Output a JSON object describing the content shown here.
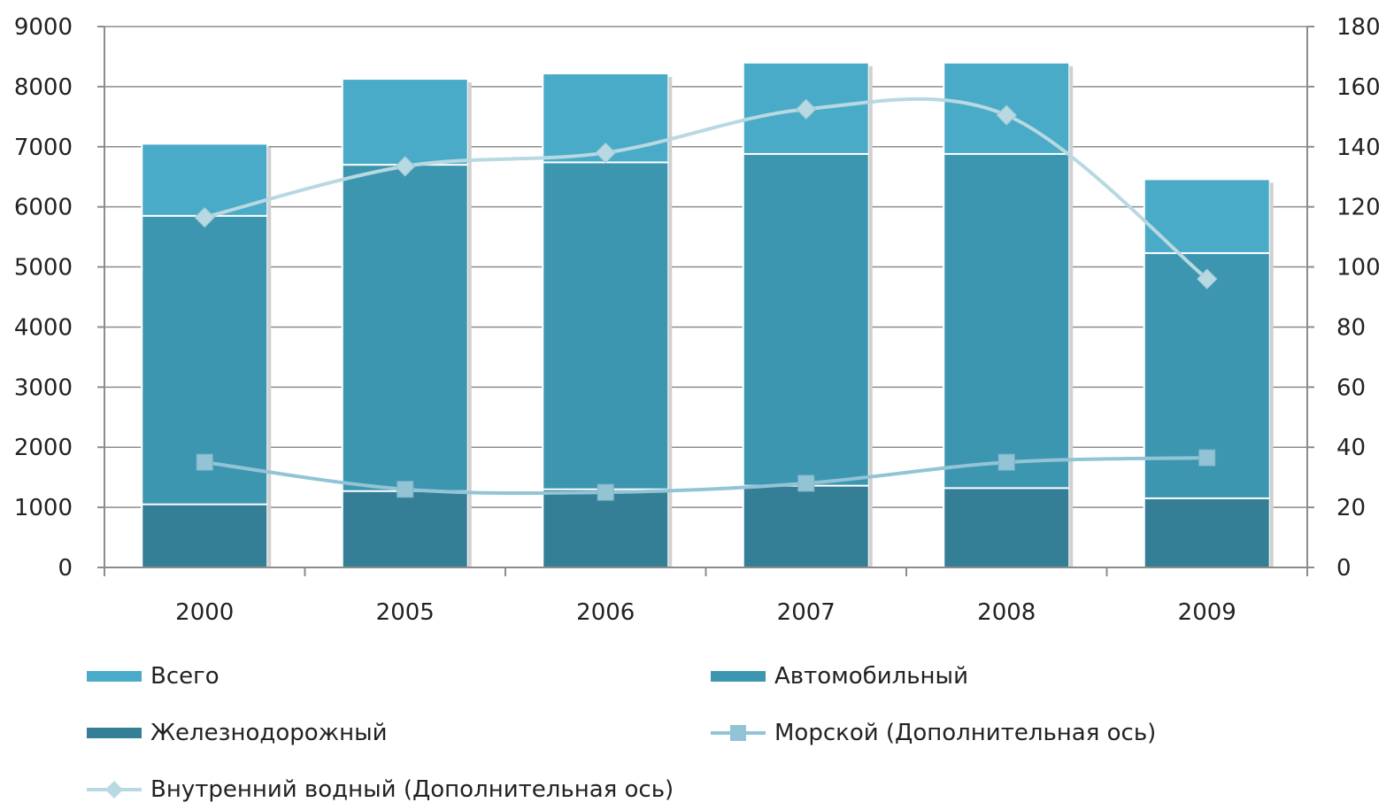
{
  "chart_data": {
    "type": "bar",
    "stacked": true,
    "categories": [
      "2000",
      "2005",
      "2006",
      "2007",
      "2008",
      "2009"
    ],
    "primary_axis": {
      "ylim": [
        0,
        9000
      ],
      "ticks": [
        "0",
        "1000",
        "2000",
        "3000",
        "4000",
        "5000",
        "6000",
        "7000",
        "8000",
        "9000"
      ]
    },
    "secondary_axis": {
      "ylim": [
        0,
        180
      ],
      "ticks": [
        "0",
        "20",
        "40",
        "60",
        "80",
        "100",
        "120",
        "140",
        "160",
        "180"
      ]
    },
    "grid": true,
    "legend_position": "bottom",
    "series": [
      {
        "name": "Железнодорожный",
        "kind": "bar",
        "axis": "primary",
        "values": [
          1050,
          1270,
          1300,
          1360,
          1320,
          1150
        ],
        "color": "#357f96"
      },
      {
        "name": "Автомобильный",
        "kind": "bar",
        "axis": "primary",
        "values": [
          4800,
          5430,
          5440,
          5520,
          5560,
          4080
        ],
        "color": "#3d96b0"
      },
      {
        "name": "Всего",
        "kind": "bar",
        "axis": "primary",
        "values": [
          7050,
          8130,
          8220,
          8400,
          8400,
          6460
        ],
        "color": "#4aabc8"
      },
      {
        "name": "Морской (Дополнительная ось)",
        "kind": "line",
        "axis": "secondary",
        "marker": "square",
        "values": [
          35,
          26,
          25,
          28,
          35,
          36.5
        ],
        "color": "#93c4d6"
      },
      {
        "name": "Внутренний водный (Дополнительная ось)",
        "kind": "line",
        "axis": "secondary",
        "marker": "diamond",
        "values": [
          116.5,
          133.5,
          138,
          152.5,
          150.5,
          96
        ],
        "color": "#b8d8e2"
      }
    ]
  },
  "legend": {
    "items": [
      {
        "label": "Всего",
        "kind": "box",
        "color": "#4aabc8"
      },
      {
        "label": "Автомобильный",
        "kind": "box",
        "color": "#3d96b0"
      },
      {
        "label": "Железнодорожный",
        "kind": "box",
        "color": "#357f96"
      },
      {
        "label": "Морской (Дополнительная ось)",
        "kind": "line-square",
        "color": "#93c4d6"
      },
      {
        "label": "Внутренний водный (Дополнительная ось)",
        "kind": "line-diamond",
        "color": "#b8d8e2"
      }
    ]
  }
}
